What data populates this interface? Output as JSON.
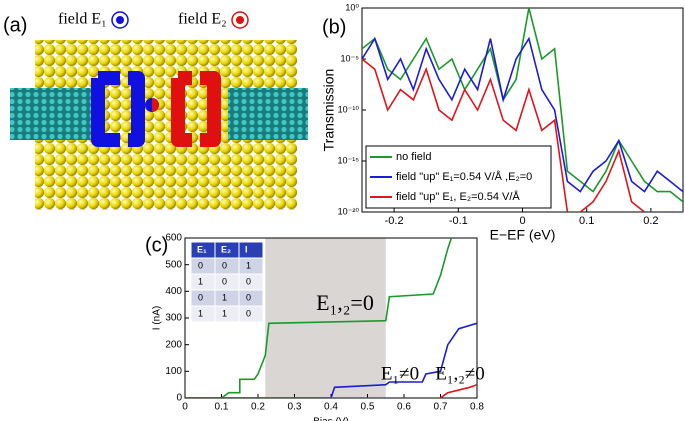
{
  "panel_labels": [
    "(a)",
    "(b)",
    "(c)"
  ],
  "illustration": {
    "field_labels": [
      "field E₁",
      "field E₂"
    ]
  },
  "table": {
    "header": [
      "E₁",
      "E₂",
      "I"
    ],
    "rows": [
      [
        0,
        0,
        1
      ],
      [
        1,
        0,
        0
      ],
      [
        0,
        1,
        0
      ],
      [
        1,
        1,
        0
      ]
    ]
  },
  "chart_data": [
    {
      "type": "line",
      "log_scale_y": true,
      "ylabel": "Transmission",
      "xlabel": "E−EF (eV)",
      "xlim": [
        -0.25,
        0.25
      ],
      "ylim": [
        1e-20,
        1
      ],
      "xticks": [
        -0.2,
        -0.1,
        0,
        0.1,
        0.2
      ],
      "yticks": [
        {
          "value": 1e-20,
          "label": "10⁻²⁰"
        },
        {
          "value": 1e-15,
          "label": "10⁻¹⁵"
        },
        {
          "value": 1e-10,
          "label": "10⁻¹⁰"
        },
        {
          "value": 1e-05,
          "label": "10⁻⁵"
        },
        {
          "value": 1,
          "label": "10⁰"
        }
      ],
      "legend": "lower left",
      "x": [
        -0.25,
        -0.23,
        -0.21,
        -0.19,
        -0.17,
        -0.15,
        -0.13,
        -0.11,
        -0.09,
        -0.07,
        -0.05,
        -0.03,
        -0.01,
        0.01,
        0.03,
        0.05,
        0.07,
        0.09,
        0.11,
        0.13,
        0.15,
        0.17,
        0.19,
        0.21,
        0.23,
        0.25
      ],
      "series": [
        {
          "name": "no field",
          "color": "#1a9a2a",
          "values": [
            0.0001,
            0.001,
            1e-06,
            1e-07,
            1e-05,
            0.001,
            1e-06,
            1e-05,
            1e-08,
            1e-06,
            0.0001,
            1e-09,
            1e-07,
            1,
            1e-05,
            0.0001,
            1e-16,
            1e-17,
            1e-18,
            1e-16,
            1e-13,
            1e-15,
            1e-17,
            1e-18,
            1e-18,
            1e-19
          ]
        },
        {
          "name": "field \"up\" E₁=0.54 V/Å ,E₂=0",
          "color": "#1c1cd6",
          "values": [
            1e-05,
            0.001,
            1e-07,
            1e-05,
            1e-08,
            0.0001,
            1e-07,
            1e-09,
            1e-06,
            1e-08,
            0.001,
            1e-09,
            1e-05,
            0.001,
            1e-08,
            1e-10,
            1e-17,
            1e-18,
            1e-16,
            1e-15,
            1e-13,
            1e-17,
            1e-18,
            1e-16,
            1e-17,
            1e-18
          ]
        },
        {
          "name": "field \"up\" E₁, E₂=0.54 V/Å",
          "color": "#e0151b",
          "values": [
            1e-05,
            1e-06,
            1e-10,
            1e-08,
            1e-09,
            1e-06,
            1e-10,
            1e-11,
            1e-08,
            1e-10,
            1e-07,
            1e-11,
            1e-12,
            1e-08,
            1e-12,
            1e-11,
            1e-20,
            1e-20,
            1e-19,
            1e-17,
            1e-14,
            1e-19,
            1e-20,
            1e-20,
            1e-20,
            1e-20
          ]
        }
      ]
    },
    {
      "type": "line",
      "xlabel": "Bias (V)",
      "ylabel": "I (nA)",
      "xlim": [
        0,
        0.8
      ],
      "ylim": [
        0,
        600
      ],
      "xticks": [
        0,
        0.1,
        0.2,
        0.3,
        0.4,
        0.5,
        0.6,
        0.7,
        0.8
      ],
      "yticks": [
        0,
        100,
        200,
        300,
        400,
        500,
        600
      ],
      "highlight_x": [
        0.22,
        0.55
      ],
      "highlight_color": "#d9d6d4",
      "annotations": [
        "E₁,₂=0",
        "E₁≠0",
        "E₁,₂≠0"
      ],
      "series": [
        {
          "color": "#1a9a2a",
          "x": [
            0,
            0.1,
            0.12,
            0.15,
            0.15,
            0.19,
            0.2,
            0.22,
            0.23,
            0.55,
            0.56,
            0.68,
            0.7,
            0.72,
            0.73
          ],
          "values": [
            0,
            0,
            20,
            20,
            70,
            70,
            90,
            160,
            280,
            290,
            380,
            390,
            460,
            560,
            600
          ]
        },
        {
          "color": "#1c1cd6",
          "x": [
            0,
            0.4,
            0.41,
            0.55,
            0.56,
            0.65,
            0.66,
            0.7,
            0.72,
            0.75,
            0.8
          ],
          "values": [
            0,
            0,
            40,
            50,
            60,
            60,
            90,
            100,
            200,
            260,
            280
          ]
        },
        {
          "color": "#e0151b",
          "x": [
            0,
            0.7,
            0.71,
            0.72,
            0.78,
            0.8
          ],
          "values": [
            0,
            0,
            10,
            20,
            40,
            50
          ]
        }
      ]
    }
  ]
}
